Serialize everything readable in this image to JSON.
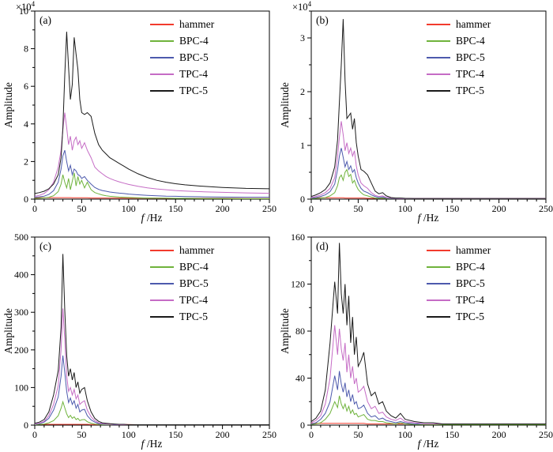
{
  "chart_data": [
    {
      "id": "a",
      "label": "(a)",
      "type": "line",
      "xlabel_em": "f",
      "xlabel_rest": " /Hz",
      "ylabel": "Amplitude",
      "y_scale_base": "×10",
      "y_scale_exp": "4",
      "xlim": [
        0,
        250
      ],
      "ylim": [
        0,
        10
      ],
      "xticks": [
        0,
        50,
        100,
        150,
        200,
        250
      ],
      "yticks": [
        0,
        2,
        4,
        6,
        8,
        10
      ],
      "x": [
        0,
        5,
        10,
        15,
        20,
        25,
        28,
        30,
        32,
        34,
        36,
        38,
        40,
        42,
        44,
        46,
        48,
        50,
        53,
        56,
        60,
        64,
        68,
        72,
        76,
        80,
        85,
        90,
        95,
        100,
        110,
        120,
        130,
        140,
        150,
        160,
        180,
        200,
        225,
        250
      ],
      "series": [
        {
          "name": "hammer",
          "color": "#f23b2d",
          "y": [
            0.08,
            0.08,
            0.08,
            0.08,
            0.08,
            0.08,
            0.08,
            0.08,
            0.08,
            0.08,
            0.08,
            0.08,
            0.07,
            0.07,
            0.07,
            0.07,
            0.07,
            0.07,
            0.07,
            0.07,
            0.06,
            0.06,
            0.06,
            0.06,
            0.06,
            0.06,
            0.06,
            0.05,
            0.05,
            0.05,
            0.05,
            0.05,
            0.05,
            0.04,
            0.04,
            0.04,
            0.04,
            0.04,
            0.03,
            0.03
          ]
        },
        {
          "name": "BPC-4",
          "color": "#6fb33c",
          "y": [
            0.04,
            0.05,
            0.07,
            0.1,
            0.18,
            0.4,
            0.8,
            1.3,
            0.9,
            0.6,
            1.1,
            0.5,
            0.95,
            1.4,
            0.7,
            1.2,
            0.8,
            1.0,
            0.6,
            0.9,
            0.5,
            0.35,
            0.28,
            0.22,
            0.18,
            0.15,
            0.13,
            0.11,
            0.1,
            0.09,
            0.07,
            0.06,
            0.05,
            0.05,
            0.04,
            0.04,
            0.03,
            0.03,
            0.02,
            0.02
          ]
        },
        {
          "name": "BPC-5",
          "color": "#4d5aad",
          "y": [
            0.1,
            0.12,
            0.16,
            0.25,
            0.45,
            0.9,
            1.6,
            2.3,
            2.6,
            2.0,
            1.5,
            1.8,
            1.3,
            1.6,
            1.5,
            1.3,
            1.25,
            1.1,
            1.2,
            1.0,
            0.8,
            0.62,
            0.52,
            0.46,
            0.42,
            0.38,
            0.35,
            0.32,
            0.3,
            0.27,
            0.23,
            0.2,
            0.18,
            0.16,
            0.15,
            0.14,
            0.12,
            0.11,
            0.1,
            0.1
          ]
        },
        {
          "name": "TPC-4",
          "color": "#c56cc5",
          "y": [
            0.15,
            0.2,
            0.3,
            0.5,
            0.9,
            1.7,
            2.6,
            3.7,
            4.6,
            3.8,
            2.9,
            3.35,
            2.6,
            3.1,
            3.3,
            2.9,
            3.1,
            2.7,
            3.0,
            2.6,
            2.2,
            1.7,
            1.5,
            1.35,
            1.2,
            1.1,
            1.0,
            0.92,
            0.85,
            0.78,
            0.68,
            0.6,
            0.54,
            0.5,
            0.46,
            0.43,
            0.39,
            0.36,
            0.33,
            0.31
          ]
        },
        {
          "name": "TPC-5",
          "color": "#1a1a1a",
          "y": [
            0.3,
            0.35,
            0.42,
            0.55,
            0.8,
            1.3,
            2.2,
            3.8,
            6.6,
            8.9,
            7.0,
            5.3,
            6.1,
            8.6,
            7.7,
            6.9,
            5.3,
            4.6,
            4.5,
            4.6,
            4.4,
            3.5,
            2.9,
            2.6,
            2.4,
            2.2,
            2.05,
            1.9,
            1.75,
            1.6,
            1.35,
            1.15,
            1.0,
            0.9,
            0.82,
            0.76,
            0.68,
            0.62,
            0.57,
            0.55
          ]
        }
      ]
    },
    {
      "id": "b",
      "label": "(b)",
      "type": "line",
      "xlabel_em": "f",
      "xlabel_rest": " /Hz",
      "ylabel": "Amplitude",
      "y_scale_base": "×10",
      "y_scale_exp": "4",
      "xlim": [
        0,
        250
      ],
      "ylim": [
        0,
        3.5
      ],
      "xticks": [
        0,
        50,
        100,
        150,
        200,
        250
      ],
      "yticks": [
        0,
        1,
        2,
        3
      ],
      "x": [
        0,
        5,
        10,
        15,
        20,
        25,
        28,
        30,
        32,
        34,
        36,
        38,
        40,
        42,
        44,
        46,
        48,
        50,
        53,
        56,
        60,
        64,
        68,
        72,
        76,
        80,
        85,
        90,
        95,
        100,
        110,
        120,
        130,
        140,
        150,
        160,
        180,
        200,
        225,
        250
      ],
      "series": [
        {
          "name": "hammer",
          "color": "#f23b2d",
          "y": [
            0.025,
            0.025,
            0.025,
            0.025,
            0.025,
            0.025,
            0.025,
            0.025,
            0.025,
            0.025,
            0.02,
            0.02,
            0.02,
            0.02,
            0.02,
            0.02,
            0.02,
            0.02,
            0.02,
            0.02,
            0.015,
            0.015,
            0.015,
            0.015,
            0.015,
            0.015,
            0.015,
            0.015,
            0.015,
            0.015,
            0.01,
            0.01,
            0.01,
            0.01,
            0.01,
            0.01,
            0.01,
            0.01,
            0.01,
            0.01
          ]
        },
        {
          "name": "BPC-4",
          "color": "#6fb33c",
          "y": [
            0.01,
            0.015,
            0.02,
            0.03,
            0.06,
            0.12,
            0.25,
            0.4,
            0.45,
            0.35,
            0.5,
            0.55,
            0.42,
            0.46,
            0.3,
            0.35,
            0.25,
            0.18,
            0.12,
            0.08,
            0.06,
            0.04,
            0.02,
            0.015,
            0.02,
            0.01,
            0.01,
            0.01,
            0.01,
            0.01,
            0.005,
            0.005,
            0.005,
            0.005,
            0.005,
            0.005,
            0.005,
            0.005,
            0.005,
            0.005
          ]
        },
        {
          "name": "BPC-5",
          "color": "#4d5aad",
          "y": [
            0.02,
            0.03,
            0.05,
            0.08,
            0.14,
            0.28,
            0.55,
            0.8,
            0.95,
            0.78,
            0.6,
            0.7,
            0.55,
            0.62,
            0.5,
            0.55,
            0.4,
            0.3,
            0.2,
            0.15,
            0.12,
            0.08,
            0.05,
            0.03,
            0.04,
            0.02,
            0.015,
            0.01,
            0.01,
            0.01,
            0.01,
            0.01,
            0.01,
            0.01,
            0.01,
            0.01,
            0.01,
            0.01,
            0.01,
            0.01
          ]
        },
        {
          "name": "TPC-4",
          "color": "#c56cc5",
          "y": [
            0.03,
            0.05,
            0.08,
            0.12,
            0.2,
            0.4,
            0.8,
            1.15,
            1.45,
            1.2,
            0.9,
            1.05,
            0.85,
            0.95,
            0.8,
            0.9,
            0.62,
            0.45,
            0.3,
            0.25,
            0.2,
            0.12,
            0.07,
            0.05,
            0.06,
            0.03,
            0.02,
            0.015,
            0.01,
            0.01,
            0.01,
            0.01,
            0.01,
            0.01,
            0.01,
            0.01,
            0.01,
            0.01,
            0.01,
            0.01
          ]
        },
        {
          "name": "TPC-5",
          "color": "#1a1a1a",
          "y": [
            0.05,
            0.08,
            0.12,
            0.18,
            0.3,
            0.6,
            1.1,
            1.8,
            2.5,
            3.35,
            2.2,
            1.5,
            1.55,
            1.6,
            1.3,
            1.5,
            1.05,
            0.8,
            0.55,
            0.52,
            0.45,
            0.3,
            0.15,
            0.1,
            0.12,
            0.06,
            0.03,
            0.02,
            0.02,
            0.015,
            0.01,
            0.01,
            0.01,
            0.01,
            0.01,
            0.01,
            0.01,
            0.01,
            0.01,
            0.01
          ]
        }
      ]
    },
    {
      "id": "c",
      "label": "(c)",
      "type": "line",
      "xlabel_em": "f",
      "xlabel_rest": " /Hz",
      "ylabel": "Amplitude",
      "xlim": [
        0,
        250
      ],
      "ylim": [
        0,
        500
      ],
      "xticks": [
        0,
        50,
        100,
        150,
        200,
        250
      ],
      "yticks": [
        0,
        100,
        200,
        300,
        400,
        500
      ],
      "x": [
        0,
        5,
        10,
        15,
        20,
        25,
        28,
        30,
        32,
        34,
        36,
        38,
        40,
        42,
        44,
        46,
        48,
        50,
        53,
        56,
        60,
        64,
        68,
        72,
        76,
        80,
        85,
        90,
        95,
        100,
        110,
        120,
        130,
        140,
        150,
        160,
        180,
        200,
        225,
        250
      ],
      "series": [
        {
          "name": "hammer",
          "color": "#f23b2d",
          "y": [
            2,
            2,
            2,
            2,
            2,
            2,
            2,
            2,
            2,
            2,
            2,
            2,
            2,
            2,
            2,
            2,
            2,
            2,
            2,
            2,
            1.5,
            1.5,
            1.5,
            1.5,
            1.5,
            1.5,
            1.5,
            1.5,
            1.5,
            1.5,
            1,
            1,
            1,
            1,
            1,
            1,
            1,
            1,
            1,
            1
          ]
        },
        {
          "name": "BPC-4",
          "color": "#6fb33c",
          "y": [
            1,
            2,
            3,
            6,
            12,
            25,
            45,
            62,
            46,
            30,
            20,
            26,
            18,
            22,
            15,
            18,
            12,
            14,
            15,
            9,
            5,
            3,
            2,
            1,
            1,
            1,
            1,
            1,
            1,
            1,
            0.5,
            0.5,
            0.5,
            0.5,
            0.5,
            0.5,
            0.5,
            0.5,
            0.5,
            0.5
          ]
        },
        {
          "name": "BPC-5",
          "color": "#4d5aad",
          "y": [
            2,
            4,
            8,
            18,
            40,
            75,
            130,
            185,
            140,
            90,
            60,
            72,
            55,
            65,
            45,
            55,
            35,
            40,
            42,
            25,
            14,
            8,
            4,
            3,
            2,
            2,
            1,
            1,
            1,
            1,
            1,
            1,
            1,
            1,
            1,
            1,
            1,
            1,
            1,
            1
          ]
        },
        {
          "name": "TPC-4",
          "color": "#c56cc5",
          "y": [
            3,
            5,
            10,
            25,
            55,
            105,
            200,
            310,
            225,
            130,
            90,
            100,
            80,
            95,
            70,
            80,
            55,
            60,
            65,
            40,
            22,
            12,
            6,
            4,
            3,
            2,
            2,
            1,
            1,
            1,
            1,
            1,
            1,
            1,
            1,
            1,
            1,
            1,
            1,
            1
          ]
        },
        {
          "name": "TPC-5",
          "color": "#1a1a1a",
          "y": [
            5,
            8,
            15,
            35,
            80,
            145,
            260,
            455,
            305,
            185,
            130,
            150,
            120,
            140,
            100,
            115,
            85,
            95,
            100,
            65,
            35,
            18,
            10,
            6,
            5,
            4,
            3,
            2,
            2,
            1,
            1,
            1,
            1,
            1,
            1,
            1,
            1,
            1,
            1,
            1
          ]
        }
      ]
    },
    {
      "id": "d",
      "label": "(d)",
      "type": "line",
      "xlabel_em": "f",
      "xlabel_rest": " /Hz",
      "ylabel": "Amplitude",
      "xlim": [
        0,
        250
      ],
      "ylim": [
        0,
        160
      ],
      "xticks": [
        0,
        50,
        100,
        150,
        200,
        250
      ],
      "yticks": [
        0,
        40,
        80,
        120,
        160
      ],
      "x": [
        0,
        5,
        10,
        15,
        20,
        25,
        28,
        30,
        32,
        34,
        36,
        38,
        40,
        42,
        44,
        46,
        48,
        50,
        53,
        56,
        60,
        64,
        68,
        72,
        76,
        80,
        85,
        90,
        95,
        100,
        110,
        120,
        130,
        140,
        150,
        160,
        180,
        200,
        225,
        250
      ],
      "series": [
        {
          "name": "hammer",
          "color": "#f23b2d",
          "y": [
            1.5,
            1.5,
            1.5,
            1.5,
            1.5,
            1.5,
            1.5,
            1.5,
            1.5,
            1.5,
            1.5,
            1.5,
            1.5,
            1.5,
            1.5,
            1.5,
            1.5,
            1.5,
            1.5,
            1.5,
            1,
            1,
            1,
            1,
            1,
            1,
            1,
            1,
            1,
            1,
            1,
            1,
            1,
            1,
            1,
            1,
            1,
            1,
            1,
            1
          ]
        },
        {
          "name": "BPC-4",
          "color": "#6fb33c",
          "y": [
            0.5,
            1,
            2,
            5,
            10,
            20,
            15,
            25,
            18,
            14,
            18,
            12,
            16,
            10,
            13,
            9,
            10,
            7,
            8,
            9,
            5,
            4,
            4,
            3,
            3,
            2,
            1.5,
            1,
            2,
            1,
            0.5,
            0.5,
            0.5,
            0.5,
            0.5,
            0.5,
            0.5,
            0.5,
            0.5,
            0.5
          ]
        },
        {
          "name": "BPC-5",
          "color": "#4d5aad",
          "y": [
            1,
            2,
            5,
            10,
            20,
            42,
            30,
            46,
            35,
            28,
            36,
            24,
            30,
            20,
            26,
            18,
            20,
            14,
            15,
            17,
            10,
            7,
            8,
            5,
            6,
            4,
            3,
            2,
            3,
            2,
            1,
            1,
            1,
            1,
            1,
            1,
            1,
            1,
            1,
            1
          ]
        },
        {
          "name": "TPC-4",
          "color": "#c56cc5",
          "y": [
            2,
            4,
            8,
            18,
            40,
            85,
            60,
            82,
            65,
            55,
            70,
            45,
            60,
            40,
            50,
            35,
            40,
            28,
            30,
            33,
            20,
            14,
            16,
            10,
            11,
            7,
            5,
            4,
            6,
            3,
            2,
            1,
            1,
            1,
            1,
            1,
            1,
            1,
            1,
            1
          ]
        },
        {
          "name": "TPC-5",
          "color": "#1a1a1a",
          "y": [
            3,
            6,
            12,
            30,
            70,
            122,
            95,
            155,
            112,
            95,
            120,
            85,
            110,
            70,
            92,
            60,
            75,
            50,
            55,
            62,
            35,
            25,
            28,
            18,
            20,
            12,
            8,
            6,
            10,
            5,
            3,
            2,
            2,
            1,
            1,
            1,
            1,
            1,
            1,
            1
          ]
        }
      ]
    }
  ]
}
